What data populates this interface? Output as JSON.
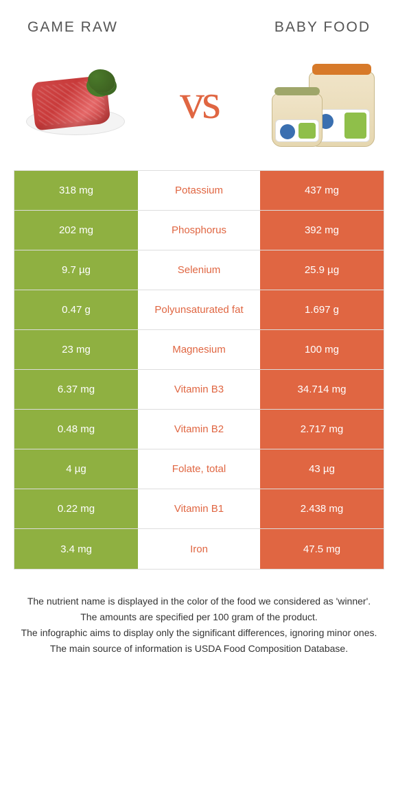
{
  "colors": {
    "left": "#8fb041",
    "right": "#e06642",
    "row_border": "#dddddd",
    "text": "#333333",
    "header_text": "#555555"
  },
  "header": {
    "left_title": "Game raw",
    "right_title": "Baby food",
    "vs_label": "vs"
  },
  "rows": [
    {
      "left": "318 mg",
      "label": "Potassium",
      "right": "437 mg",
      "label_color": "#e06642"
    },
    {
      "left": "202 mg",
      "label": "Phosphorus",
      "right": "392 mg",
      "label_color": "#e06642"
    },
    {
      "left": "9.7 µg",
      "label": "Selenium",
      "right": "25.9 µg",
      "label_color": "#e06642"
    },
    {
      "left": "0.47 g",
      "label": "Polyunsaturated fat",
      "right": "1.697 g",
      "label_color": "#e06642"
    },
    {
      "left": "23 mg",
      "label": "Magnesium",
      "right": "100 mg",
      "label_color": "#e06642"
    },
    {
      "left": "6.37 mg",
      "label": "Vitamin B3",
      "right": "34.714 mg",
      "label_color": "#e06642"
    },
    {
      "left": "0.48 mg",
      "label": "Vitamin B2",
      "right": "2.717 mg",
      "label_color": "#e06642"
    },
    {
      "left": "4 µg",
      "label": "Folate, total",
      "right": "43 µg",
      "label_color": "#e06642"
    },
    {
      "left": "0.22 mg",
      "label": "Vitamin B1",
      "right": "2.438 mg",
      "label_color": "#e06642"
    },
    {
      "left": "3.4 mg",
      "label": "Iron",
      "right": "47.5 mg",
      "label_color": "#e06642"
    }
  ],
  "footer": {
    "line1": "The nutrient name is displayed in the color of the food we considered as 'winner'.",
    "line2": "The amounts are specified per 100 gram of the product.",
    "line3": "The infographic aims to display only the significant differences, ignoring minor ones.",
    "line4": "The main source of information is USDA Food Composition Database."
  }
}
